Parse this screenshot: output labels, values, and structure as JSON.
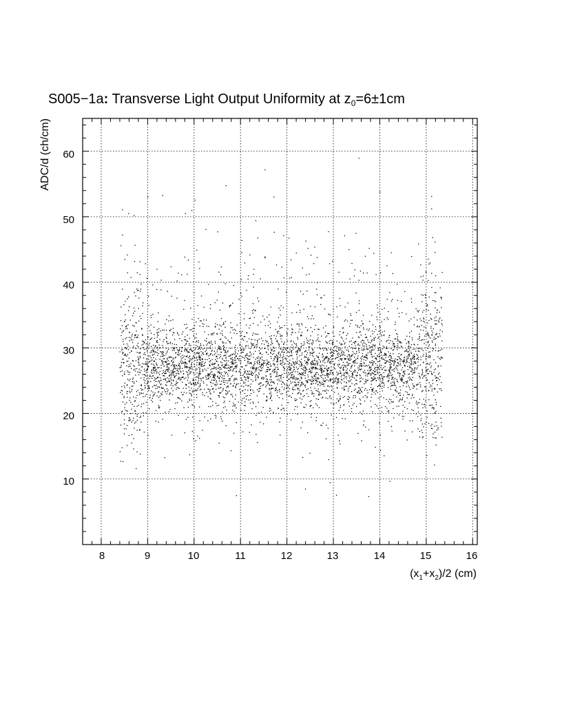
{
  "chart_data": {
    "type": "scatter",
    "title": {
      "prefix": "S005−1a",
      "colon": ":",
      "main": " Transverse Light Output Uniformity at z",
      "sub": "0",
      "tail": "=6±1cm"
    },
    "xlabel": {
      "p1": "(x",
      "s1": "1",
      "p2": "+x",
      "s2": "2",
      "p3": ")/2 (cm)"
    },
    "ylabel": "ADC/d (ch/cm)",
    "xlim": [
      7.6,
      16.1
    ],
    "ylim": [
      0,
      65
    ],
    "xticks": [
      "8",
      "9",
      "10",
      "11",
      "12",
      "13",
      "14",
      "15",
      "16"
    ],
    "yticks": [
      "10",
      "20",
      "30",
      "40",
      "50",
      "60"
    ],
    "grid": true,
    "points_note": "dense scatter of ~4500 events",
    "distribution": {
      "x_range": [
        8.4,
        15.35
      ],
      "core_mean_y": 27,
      "core_sd_y": 3,
      "tail_y_range": [
        5,
        60
      ]
    }
  }
}
